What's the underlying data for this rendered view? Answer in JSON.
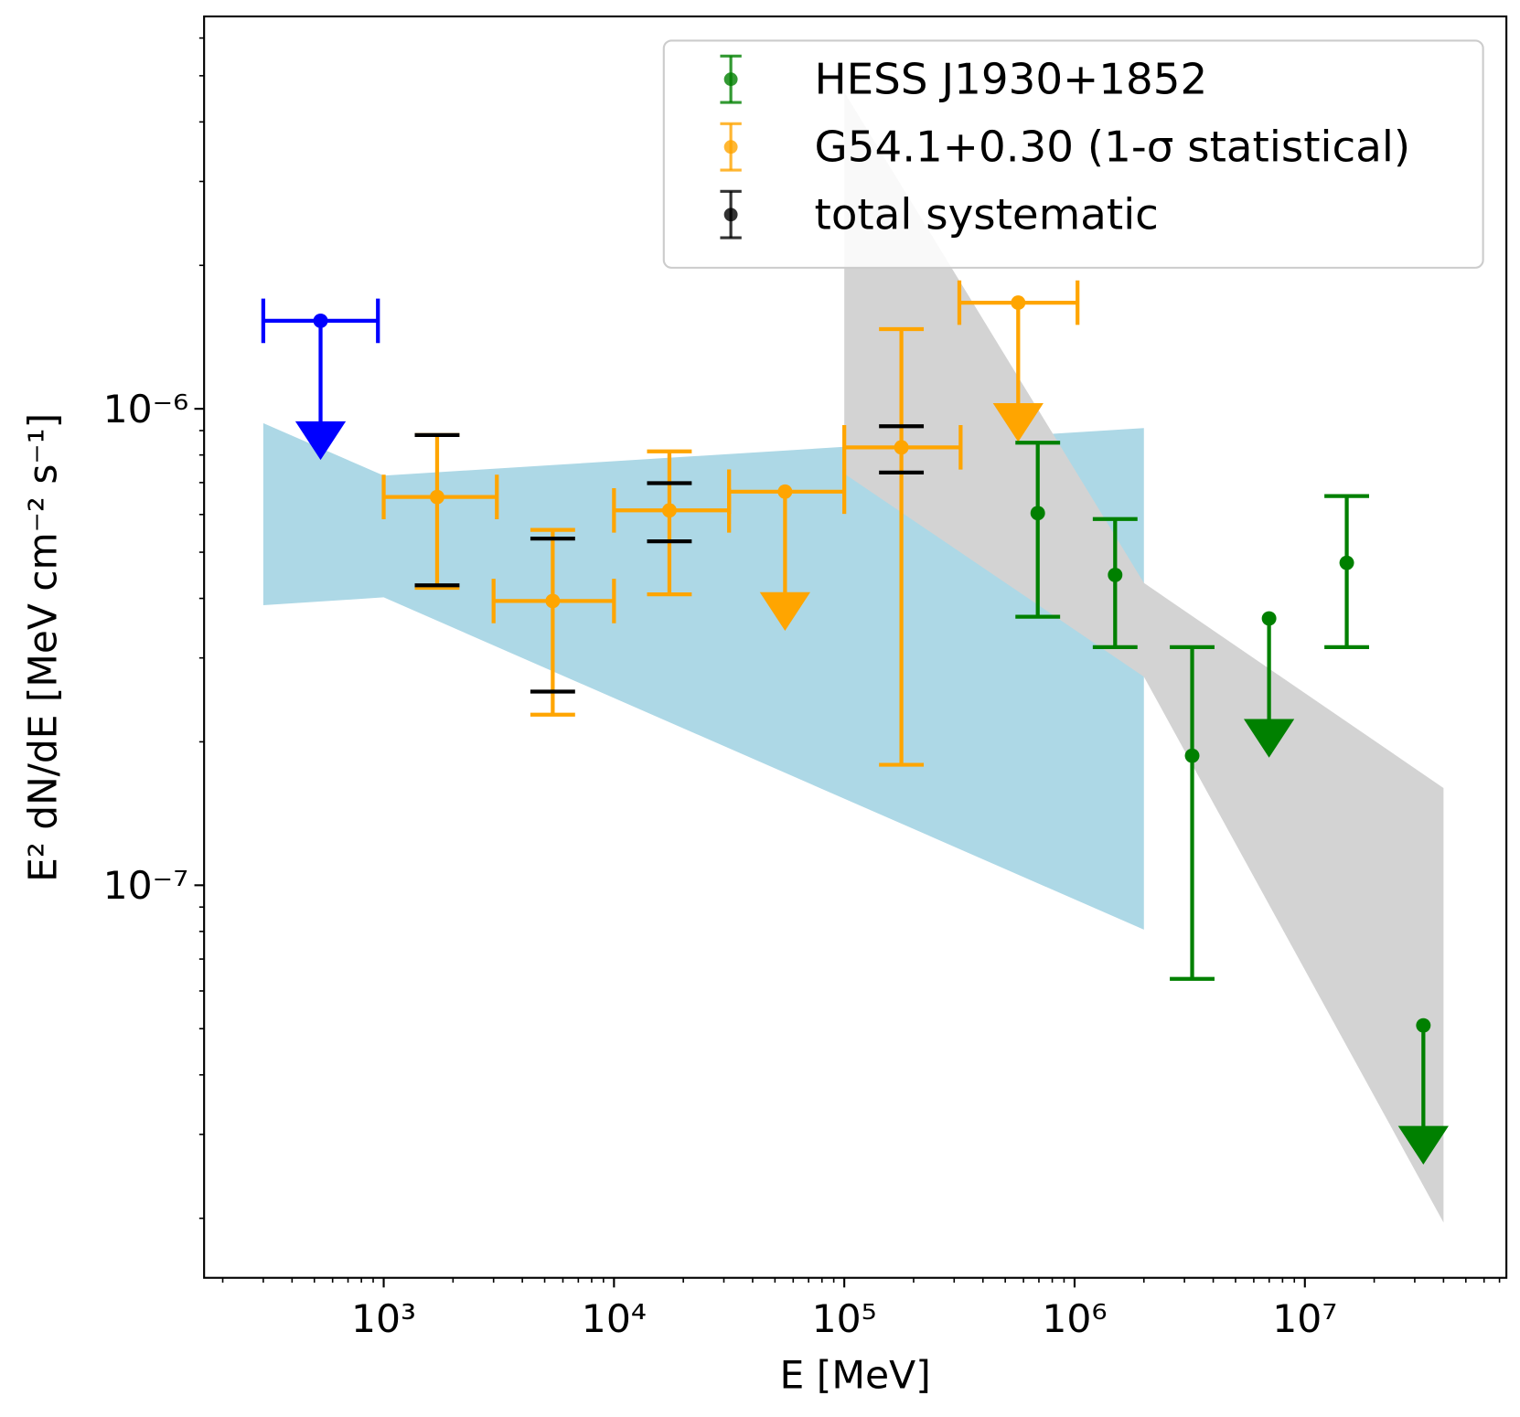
{
  "chart_data": {
    "type": "errorbar",
    "x_label": "E [MeV]",
    "y_label": "E² dN/dE [MeV cm⁻² s⁻¹]",
    "xscale": "log",
    "yscale": "log",
    "xlim": [
      166,
      75000000
    ],
    "ylim": [
      1.5e-08,
      6.66e-06
    ],
    "xticks": [
      {
        "value": 1000,
        "label": "10³"
      },
      {
        "value": 10000,
        "label": "10⁴"
      },
      {
        "value": 100000,
        "label": "10⁵"
      },
      {
        "value": 1000000,
        "label": "10⁶"
      },
      {
        "value": 10000000,
        "label": "10⁷"
      }
    ],
    "yticks": [
      {
        "value": 1e-07,
        "label": "10⁻⁷"
      },
      {
        "value": 1e-06,
        "label": "10⁻⁶"
      }
    ],
    "legend": "upper right",
    "bands": [
      {
        "color": "#add8e6",
        "x": [
          300,
          1000,
          2000000
        ],
        "upper": [
          9.33e-07,
          7.24e-07,
          9.11e-07
        ],
        "lower": [
          3.87e-07,
          4.02e-07,
          8.07e-08
        ]
      },
      {
        "color": "#d3d3d3",
        "x": [
          100000,
          2000000,
          40000000
        ],
        "upper": [
          4.62e-06,
          4.31e-07,
          1.6e-07
        ],
        "lower": [
          7.31e-07,
          2.74e-07,
          1.96e-08
        ]
      }
    ],
    "series": [
      {
        "color": "#0000ff",
        "x": [
          532
        ],
        "values": [
          1.53e-06
        ],
        "x_low": [
          300
        ],
        "x_high": [
          944
        ],
        "y_low": [
          null
        ],
        "y_high": [
          null
        ],
        "upper_limit": [
          true
        ]
      },
      {
        "name": "G54.1+0.30 (1-σ statistical)",
        "color": "#ffa500",
        "x": [
          1706,
          5420,
          17400,
          55300,
          177000,
          569000
        ],
        "values": [
          6.53e-07,
          3.95e-07,
          6.12e-07,
          6.7e-07,
          8.3e-07,
          1.67e-06
        ],
        "x_low": [
          1000,
          3000,
          10000,
          31600,
          100000,
          316000
        ],
        "x_high": [
          3100,
          10000,
          31600,
          100000,
          320000,
          1030000
        ],
        "y_low": [
          4.21e-07,
          2.28e-07,
          4.08e-07,
          null,
          1.79e-07,
          null
        ],
        "y_high": [
          8.81e-07,
          5.57e-07,
          8.14e-07,
          null,
          1.47e-06,
          null
        ],
        "upper_limit": [
          false,
          false,
          false,
          true,
          false,
          true
        ]
      },
      {
        "name": "HESS J1930+1852",
        "color": "#008000",
        "x": [
          692000,
          1500000,
          3240000,
          6990000,
          15200000,
          32700000
        ],
        "values": [
          6.04e-07,
          4.48e-07,
          1.87e-07,
          3.63e-07,
          4.75e-07,
          5.08e-08
        ],
        "y_low": [
          3.66e-07,
          3.16e-07,
          6.36e-08,
          null,
          3.16e-07,
          null
        ],
        "y_high": [
          8.49e-07,
          5.87e-07,
          3.16e-07,
          null,
          6.56e-07,
          null
        ],
        "upper_limit": [
          false,
          false,
          false,
          true,
          false,
          true
        ]
      },
      {
        "name": "total systematic",
        "color": "#000000",
        "caps_only": true,
        "x": [
          1706,
          5420,
          17400,
          177000
        ],
        "y_low": [
          4.26e-07,
          2.55e-07,
          5.27e-07,
          7.35e-07
        ],
        "y_high": [
          8.81e-07,
          5.34e-07,
          6.98e-07,
          9.19e-07
        ]
      }
    ],
    "legend_order": [
      2,
      1,
      3
    ]
  }
}
